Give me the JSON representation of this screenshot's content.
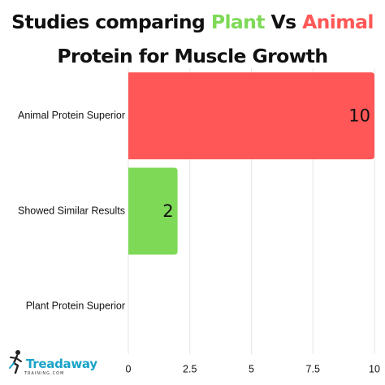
{
  "title": {
    "part1": "Studies comparing ",
    "plant": "Plant",
    "vs": " Vs ",
    "animal": "Animal",
    "line2": "Protein for Muscle Growth"
  },
  "logo": {
    "name": "Treadaway",
    "sub": "TRAINING.COM"
  },
  "colors": {
    "plant": "#7ed957",
    "animal": "#ff5757",
    "grid": "#e6e6e6"
  },
  "chart_data": {
    "type": "bar",
    "orientation": "horizontal",
    "categories": [
      "Animal Protein Superior",
      "Showed Similar Results",
      "Plant Protein Superior"
    ],
    "values": [
      10,
      2,
      0
    ],
    "bar_colors": [
      "#ff5757",
      "#7ed957",
      "#7ed957"
    ],
    "data_labels": [
      "10",
      "2",
      ""
    ],
    "xlim": [
      0,
      10
    ],
    "xticks": [
      0,
      2.5,
      5,
      7.5,
      10
    ],
    "xtick_labels": [
      "0",
      "2.5",
      "5",
      "7.5",
      "10"
    ],
    "grid": true
  }
}
